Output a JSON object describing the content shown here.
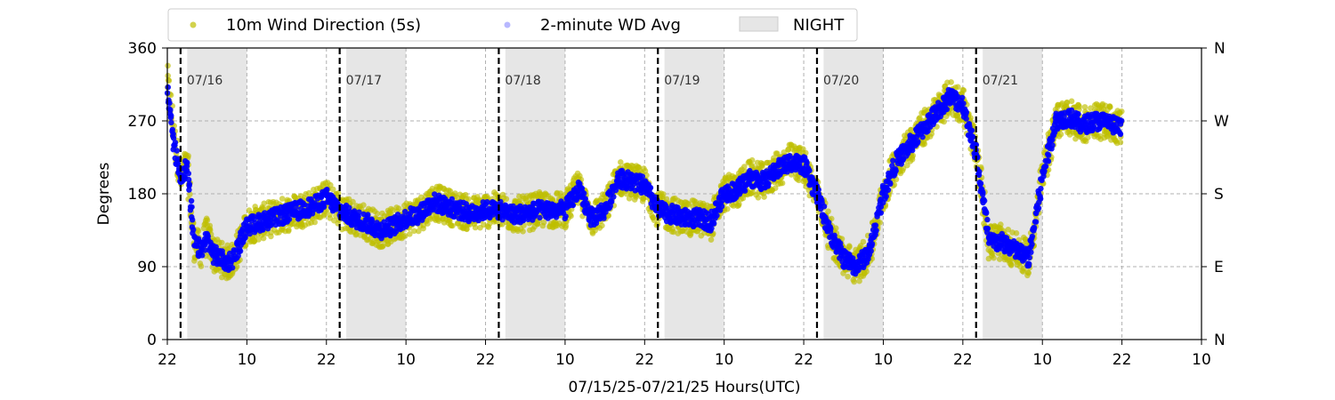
{
  "chart_data": {
    "type": "scatter",
    "xlabel": "07/15/25-07/21/25  Hours(UTC)",
    "ylabel": "Degrees",
    "ylim": [
      0,
      360
    ],
    "xlim": [
      "2025-07-15T22:00",
      "2025-07-22T10:00"
    ],
    "x_ticks": [
      {
        "t": "2025-07-15T22:00",
        "label": "22"
      },
      {
        "t": "2025-07-16T10:00",
        "label": "10"
      },
      {
        "t": "2025-07-16T22:00",
        "label": "22"
      },
      {
        "t": "2025-07-17T10:00",
        "label": "10"
      },
      {
        "t": "2025-07-17T22:00",
        "label": "22"
      },
      {
        "t": "2025-07-18T10:00",
        "label": "10"
      },
      {
        "t": "2025-07-18T22:00",
        "label": "22"
      },
      {
        "t": "2025-07-19T10:00",
        "label": "10"
      },
      {
        "t": "2025-07-19T22:00",
        "label": "22"
      },
      {
        "t": "2025-07-20T10:00",
        "label": "10"
      },
      {
        "t": "2025-07-20T22:00",
        "label": "22"
      },
      {
        "t": "2025-07-21T10:00",
        "label": "10"
      },
      {
        "t": "2025-07-21T22:00",
        "label": "22"
      },
      {
        "t": "2025-07-22T10:00",
        "label": "10"
      }
    ],
    "y_ticks": [
      0,
      90,
      180,
      270,
      360
    ],
    "y_right_ticks": [
      {
        "value": 0,
        "label": "N"
      },
      {
        "value": 90,
        "label": "E"
      },
      {
        "value": 180,
        "label": "S"
      },
      {
        "value": 270,
        "label": "W"
      },
      {
        "value": 360,
        "label": "N"
      }
    ],
    "grid": true,
    "legend_position": "top-left",
    "legend": [
      {
        "label": "10m Wind Direction (5s)",
        "color": "#bfbf00",
        "kind": "marker"
      },
      {
        "label": "2-minute WD Avg",
        "color": "#0000ff",
        "kind": "marker"
      },
      {
        "label": "NIGHT",
        "color": "#e6e6e6",
        "kind": "patch"
      }
    ],
    "day_markers": [
      {
        "t": "2025-07-16T00:00",
        "label": "07/16"
      },
      {
        "t": "2025-07-17T00:00",
        "label": "07/17"
      },
      {
        "t": "2025-07-18T00:00",
        "label": "07/18"
      },
      {
        "t": "2025-07-19T00:00",
        "label": "07/19"
      },
      {
        "t": "2025-07-20T00:00",
        "label": "07/20"
      },
      {
        "t": "2025-07-21T00:00",
        "label": "07/21"
      }
    ],
    "night_periods": [
      {
        "start": "2025-07-16T01:00",
        "end": "2025-07-16T10:00"
      },
      {
        "start": "2025-07-17T01:00",
        "end": "2025-07-17T10:00"
      },
      {
        "start": "2025-07-18T01:00",
        "end": "2025-07-18T10:00"
      },
      {
        "start": "2025-07-19T01:00",
        "end": "2025-07-19T10:00"
      },
      {
        "start": "2025-07-20T01:00",
        "end": "2025-07-20T10:00"
      },
      {
        "start": "2025-07-21T01:00",
        "end": "2025-07-21T10:00"
      }
    ],
    "series": [
      {
        "name": "10m Wind Direction (5s)",
        "color": "#bfbf00",
        "spread": 22,
        "points": [
          [
            "2025-07-15T22:00",
            320
          ],
          [
            "2025-07-15T23:00",
            250
          ],
          [
            "2025-07-16T00:00",
            200
          ],
          [
            "2025-07-16T01:00",
            215
          ],
          [
            "2025-07-16T02:00",
            120
          ],
          [
            "2025-07-16T03:00",
            110
          ],
          [
            "2025-07-16T04:00",
            130
          ],
          [
            "2025-07-16T05:00",
            105
          ],
          [
            "2025-07-16T06:00",
            100
          ],
          [
            "2025-07-16T07:00",
            95
          ],
          [
            "2025-07-16T08:00",
            100
          ],
          [
            "2025-07-16T09:00",
            120
          ],
          [
            "2025-07-16T10:00",
            140
          ],
          [
            "2025-07-16T12:00",
            145
          ],
          [
            "2025-07-16T14:00",
            150
          ],
          [
            "2025-07-16T16:00",
            155
          ],
          [
            "2025-07-16T18:00",
            160
          ],
          [
            "2025-07-16T20:00",
            165
          ],
          [
            "2025-07-16T22:00",
            175
          ],
          [
            "2025-07-17T00:00",
            160
          ],
          [
            "2025-07-17T02:00",
            150
          ],
          [
            "2025-07-17T04:00",
            145
          ],
          [
            "2025-07-17T06:00",
            135
          ],
          [
            "2025-07-17T08:00",
            140
          ],
          [
            "2025-07-17T10:00",
            150
          ],
          [
            "2025-07-17T12:00",
            155
          ],
          [
            "2025-07-17T14:00",
            170
          ],
          [
            "2025-07-17T16:00",
            165
          ],
          [
            "2025-07-17T18:00",
            160
          ],
          [
            "2025-07-17T20:00",
            155
          ],
          [
            "2025-07-17T22:00",
            160
          ],
          [
            "2025-07-18T00:00",
            160
          ],
          [
            "2025-07-18T02:00",
            155
          ],
          [
            "2025-07-18T04:00",
            155
          ],
          [
            "2025-07-18T06:00",
            160
          ],
          [
            "2025-07-18T08:00",
            160
          ],
          [
            "2025-07-18T10:00",
            160
          ],
          [
            "2025-07-18T12:00",
            185
          ],
          [
            "2025-07-18T14:00",
            150
          ],
          [
            "2025-07-18T16:00",
            160
          ],
          [
            "2025-07-18T18:00",
            200
          ],
          [
            "2025-07-18T20:00",
            195
          ],
          [
            "2025-07-18T22:00",
            190
          ],
          [
            "2025-07-19T00:00",
            160
          ],
          [
            "2025-07-19T02:00",
            155
          ],
          [
            "2025-07-19T04:00",
            150
          ],
          [
            "2025-07-19T06:00",
            150
          ],
          [
            "2025-07-19T08:00",
            145
          ],
          [
            "2025-07-19T10:00",
            180
          ],
          [
            "2025-07-19T12:00",
            185
          ],
          [
            "2025-07-19T14:00",
            200
          ],
          [
            "2025-07-19T16:00",
            195
          ],
          [
            "2025-07-19T18:00",
            210
          ],
          [
            "2025-07-19T20:00",
            220
          ],
          [
            "2025-07-19T22:00",
            215
          ],
          [
            "2025-07-20T00:00",
            180
          ],
          [
            "2025-07-20T02:00",
            130
          ],
          [
            "2025-07-20T04:00",
            100
          ],
          [
            "2025-07-20T06:00",
            90
          ],
          [
            "2025-07-20T08:00",
            110
          ],
          [
            "2025-07-20T10:00",
            180
          ],
          [
            "2025-07-20T12:00",
            220
          ],
          [
            "2025-07-20T14:00",
            240
          ],
          [
            "2025-07-20T16:00",
            260
          ],
          [
            "2025-07-20T18:00",
            280
          ],
          [
            "2025-07-20T20:00",
            300
          ],
          [
            "2025-07-20T22:00",
            290
          ],
          [
            "2025-07-21T00:00",
            230
          ],
          [
            "2025-07-21T02:00",
            120
          ],
          [
            "2025-07-21T04:00",
            120
          ],
          [
            "2025-07-21T06:00",
            110
          ],
          [
            "2025-07-21T08:00",
            100
          ],
          [
            "2025-07-21T10:00",
            200
          ],
          [
            "2025-07-21T12:00",
            270
          ],
          [
            "2025-07-21T14:00",
            275
          ],
          [
            "2025-07-21T16:00",
            265
          ],
          [
            "2025-07-21T18:00",
            270
          ],
          [
            "2025-07-21T20:00",
            268
          ],
          [
            "2025-07-21T22:00",
            260
          ]
        ]
      },
      {
        "name": "2-minute WD Avg",
        "color": "#0000ff",
        "spread": 11,
        "points": [
          [
            "2025-07-15T22:00",
            310
          ],
          [
            "2025-07-15T23:00",
            240
          ],
          [
            "2025-07-16T00:00",
            200
          ],
          [
            "2025-07-16T01:00",
            215
          ],
          [
            "2025-07-16T02:00",
            120
          ],
          [
            "2025-07-16T03:00",
            110
          ],
          [
            "2025-07-16T04:00",
            125
          ],
          [
            "2025-07-16T05:00",
            105
          ],
          [
            "2025-07-16T06:00",
            100
          ],
          [
            "2025-07-16T07:00",
            95
          ],
          [
            "2025-07-16T08:00",
            100
          ],
          [
            "2025-07-16T09:00",
            120
          ],
          [
            "2025-07-16T10:00",
            140
          ],
          [
            "2025-07-16T12:00",
            145
          ],
          [
            "2025-07-16T14:00",
            150
          ],
          [
            "2025-07-16T16:00",
            155
          ],
          [
            "2025-07-16T18:00",
            160
          ],
          [
            "2025-07-16T20:00",
            165
          ],
          [
            "2025-07-16T22:00",
            175
          ],
          [
            "2025-07-17T00:00",
            160
          ],
          [
            "2025-07-17T02:00",
            150
          ],
          [
            "2025-07-17T04:00",
            145
          ],
          [
            "2025-07-17T06:00",
            135
          ],
          [
            "2025-07-17T08:00",
            140
          ],
          [
            "2025-07-17T10:00",
            150
          ],
          [
            "2025-07-17T12:00",
            155
          ],
          [
            "2025-07-17T14:00",
            170
          ],
          [
            "2025-07-17T16:00",
            165
          ],
          [
            "2025-07-17T18:00",
            160
          ],
          [
            "2025-07-17T20:00",
            155
          ],
          [
            "2025-07-17T22:00",
            160
          ],
          [
            "2025-07-18T00:00",
            160
          ],
          [
            "2025-07-18T02:00",
            155
          ],
          [
            "2025-07-18T04:00",
            155
          ],
          [
            "2025-07-18T06:00",
            160
          ],
          [
            "2025-07-18T08:00",
            160
          ],
          [
            "2025-07-18T10:00",
            160
          ],
          [
            "2025-07-18T12:00",
            185
          ],
          [
            "2025-07-18T14:00",
            150
          ],
          [
            "2025-07-18T16:00",
            160
          ],
          [
            "2025-07-18T18:00",
            200
          ],
          [
            "2025-07-18T20:00",
            195
          ],
          [
            "2025-07-18T22:00",
            190
          ],
          [
            "2025-07-19T00:00",
            160
          ],
          [
            "2025-07-19T02:00",
            155
          ],
          [
            "2025-07-19T04:00",
            150
          ],
          [
            "2025-07-19T06:00",
            150
          ],
          [
            "2025-07-19T08:00",
            145
          ],
          [
            "2025-07-19T10:00",
            180
          ],
          [
            "2025-07-19T12:00",
            185
          ],
          [
            "2025-07-19T14:00",
            200
          ],
          [
            "2025-07-19T16:00",
            195
          ],
          [
            "2025-07-19T18:00",
            210
          ],
          [
            "2025-07-19T20:00",
            220
          ],
          [
            "2025-07-19T22:00",
            215
          ],
          [
            "2025-07-20T00:00",
            180
          ],
          [
            "2025-07-20T02:00",
            130
          ],
          [
            "2025-07-20T04:00",
            100
          ],
          [
            "2025-07-20T06:00",
            90
          ],
          [
            "2025-07-20T08:00",
            110
          ],
          [
            "2025-07-20T10:00",
            180
          ],
          [
            "2025-07-20T12:00",
            220
          ],
          [
            "2025-07-20T14:00",
            240
          ],
          [
            "2025-07-20T16:00",
            260
          ],
          [
            "2025-07-20T18:00",
            280
          ],
          [
            "2025-07-20T20:00",
            300
          ],
          [
            "2025-07-20T22:00",
            290
          ],
          [
            "2025-07-21T00:00",
            230
          ],
          [
            "2025-07-21T02:00",
            120
          ],
          [
            "2025-07-21T04:00",
            120
          ],
          [
            "2025-07-21T06:00",
            110
          ],
          [
            "2025-07-21T08:00",
            100
          ],
          [
            "2025-07-21T10:00",
            200
          ],
          [
            "2025-07-21T12:00",
            270
          ],
          [
            "2025-07-21T14:00",
            275
          ],
          [
            "2025-07-21T16:00",
            265
          ],
          [
            "2025-07-21T18:00",
            270
          ],
          [
            "2025-07-21T20:00",
            268
          ],
          [
            "2025-07-21T22:00",
            260
          ]
        ]
      }
    ]
  }
}
